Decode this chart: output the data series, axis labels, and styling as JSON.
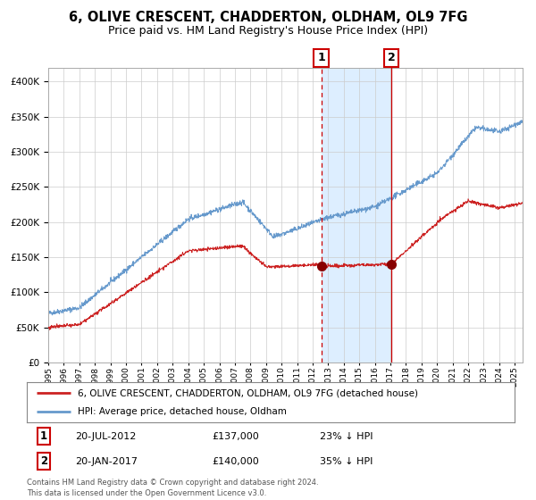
{
  "title": "6, OLIVE CRESCENT, CHADDERTON, OLDHAM, OL9 7FG",
  "subtitle": "Price paid vs. HM Land Registry's House Price Index (HPI)",
  "title_fontsize": 10.5,
  "subtitle_fontsize": 9,
  "background_color": "#ffffff",
  "plot_bg_color": "#ffffff",
  "grid_color": "#cccccc",
  "hpi_line_color": "#6699cc",
  "price_line_color": "#cc2222",
  "marker_color": "#880000",
  "sale1_date_num": 2012.55,
  "sale1_price": 137000,
  "sale2_date_num": 2017.05,
  "sale2_price": 140000,
  "sale1_label": "1",
  "sale2_label": "2",
  "legend_line1": "6, OLIVE CRESCENT, CHADDERTON, OLDHAM, OL9 7FG (detached house)",
  "legend_line2": "HPI: Average price, detached house, Oldham",
  "footer": "Contains HM Land Registry data © Crown copyright and database right 2024.\nThis data is licensed under the Open Government Licence v3.0.",
  "ylim": [
    0,
    420000
  ],
  "xlim_start": 1995.0,
  "xlim_end": 2025.5,
  "shaded_region_color": "#ddeeff",
  "vline_color": "#cc0000",
  "box_color": "#cc0000"
}
